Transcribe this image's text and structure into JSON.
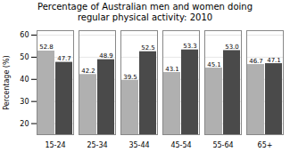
{
  "chart_data": {
    "type": "bar",
    "title": "Percentage of Australian men and women doing\nregular physical activity: 2010",
    "ylabel": "Percentage (%)",
    "categories": [
      "15-24",
      "25-34",
      "35-44",
      "45-54",
      "55-64",
      "65+"
    ],
    "series": [
      {
        "color": "#b0b0b0",
        "values": [
          52.8,
          42.2,
          39.5,
          43.1,
          45.1,
          46.7
        ]
      },
      {
        "color": "#4a4a4a",
        "values": [
          47.7,
          48.9,
          52.5,
          53.3,
          53.0,
          47.1
        ],
        "value_labels": [
          "47.7",
          "48.9",
          "52.5",
          "53.3",
          "53.0",
          "47.1"
        ]
      }
    ],
    "ylim": [
      15,
      62
    ],
    "yticks": [
      20,
      30,
      40,
      50,
      60
    ],
    "grid": true,
    "data_labels": true
  }
}
